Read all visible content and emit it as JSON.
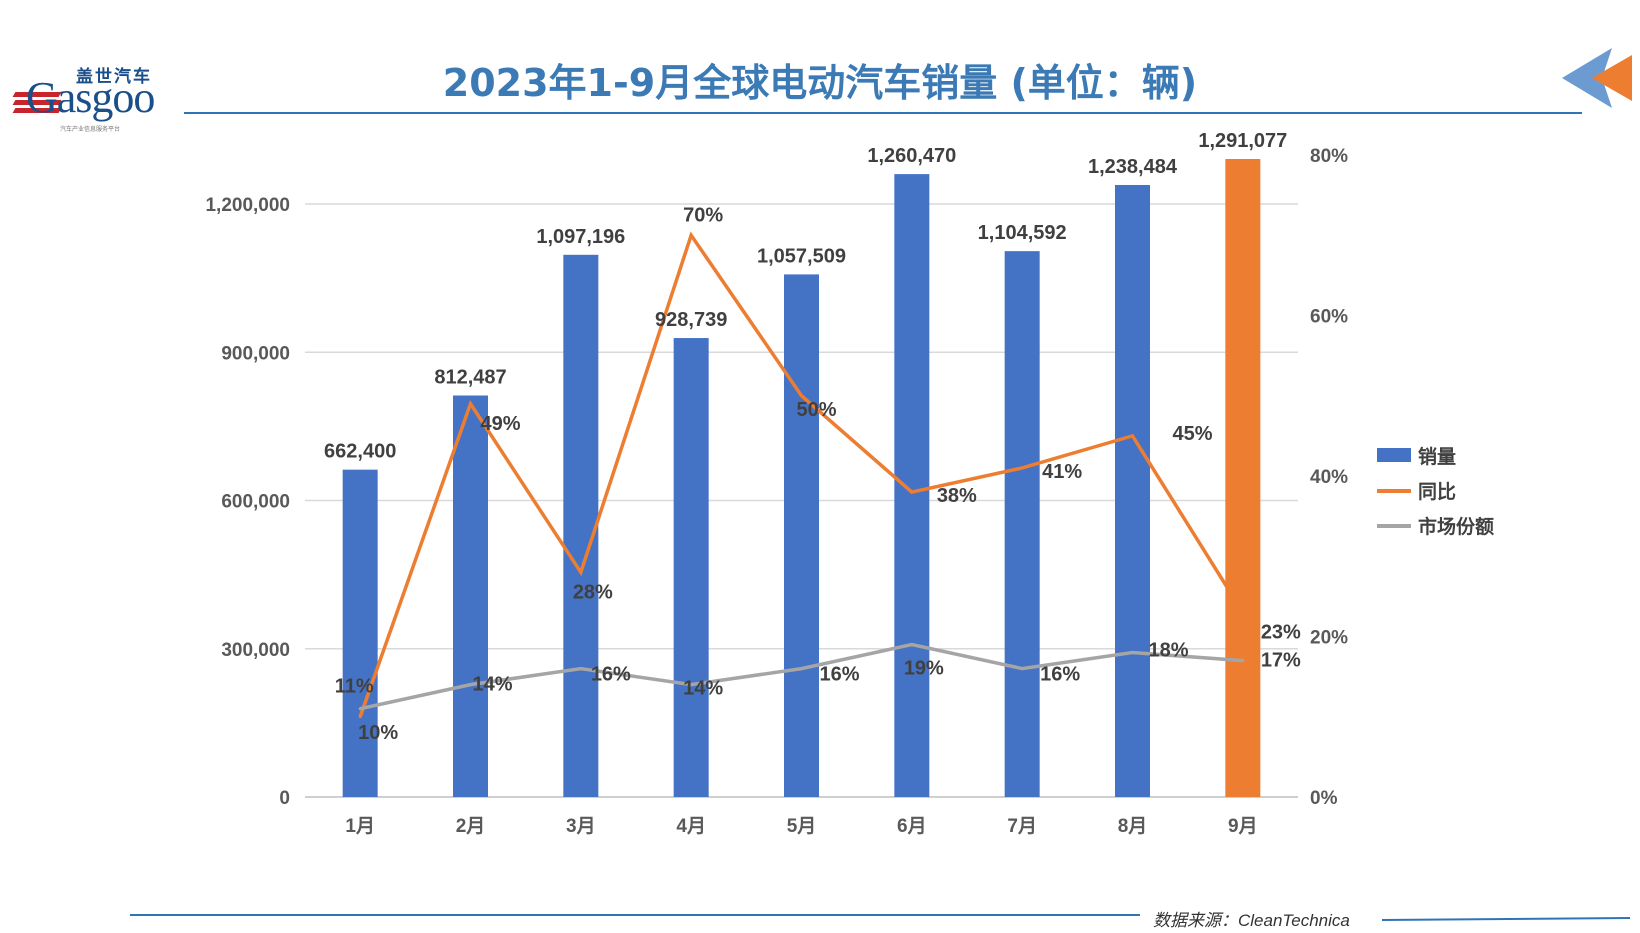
{
  "title": "2023年1-9月全球电动汽车销量 (单位：辆)",
  "logo": {
    "brand_cn": "盖世汽车",
    "brand_en": "Gasgoo",
    "tagline": "汽车产业信息服务平台"
  },
  "source": "数据来源：CleanTechnica",
  "colors": {
    "title": "#3b7ab5",
    "bar": "#4472c4",
    "bar_highlight": "#ed7d31",
    "yoy": "#ed7d31",
    "share": "#a5a5a5"
  },
  "chart_data": {
    "type": "bar",
    "title": "2023年1-9月全球电动汽车销量 (单位：辆)",
    "categories": [
      "1月",
      "2月",
      "3月",
      "4月",
      "5月",
      "6月",
      "7月",
      "8月",
      "9月"
    ],
    "series": [
      {
        "name": "销量",
        "type": "bar",
        "axis": "left",
        "values": [
          662400,
          812487,
          1097196,
          928739,
          1057509,
          1260470,
          1104592,
          1238484,
          1291077
        ],
        "labels": [
          "662,400",
          "812,487",
          "1,097,196",
          "928,739",
          "1,057,509",
          "1,260,470",
          "1,104,592",
          "1,238,484",
          "1,291,077"
        ],
        "highlight_index": 8
      },
      {
        "name": "同比",
        "type": "line",
        "axis": "right",
        "values": [
          10,
          49,
          28,
          70,
          50,
          38,
          41,
          45,
          23
        ],
        "labels": [
          "10%",
          "49%",
          "28%",
          "70%",
          "50%",
          "38%",
          "41%",
          "45%",
          "23%"
        ]
      },
      {
        "name": "市场份额",
        "type": "line",
        "axis": "right",
        "values": [
          11,
          14,
          16,
          14,
          16,
          19,
          16,
          18,
          17
        ],
        "labels": [
          "11%",
          "14%",
          "16%",
          "14%",
          "16%",
          "19%",
          "16%",
          "18%",
          "17%"
        ]
      }
    ],
    "left_axis": {
      "ylim": [
        0,
        1200000
      ],
      "ticks": [
        "0",
        "300,000",
        "600,000",
        "900,000",
        "1,200,000"
      ]
    },
    "right_axis": {
      "ylim": [
        0,
        80
      ],
      "ticks": [
        "0%",
        "20%",
        "40%",
        "60%",
        "80%"
      ]
    },
    "grid": true,
    "legend": "right"
  }
}
